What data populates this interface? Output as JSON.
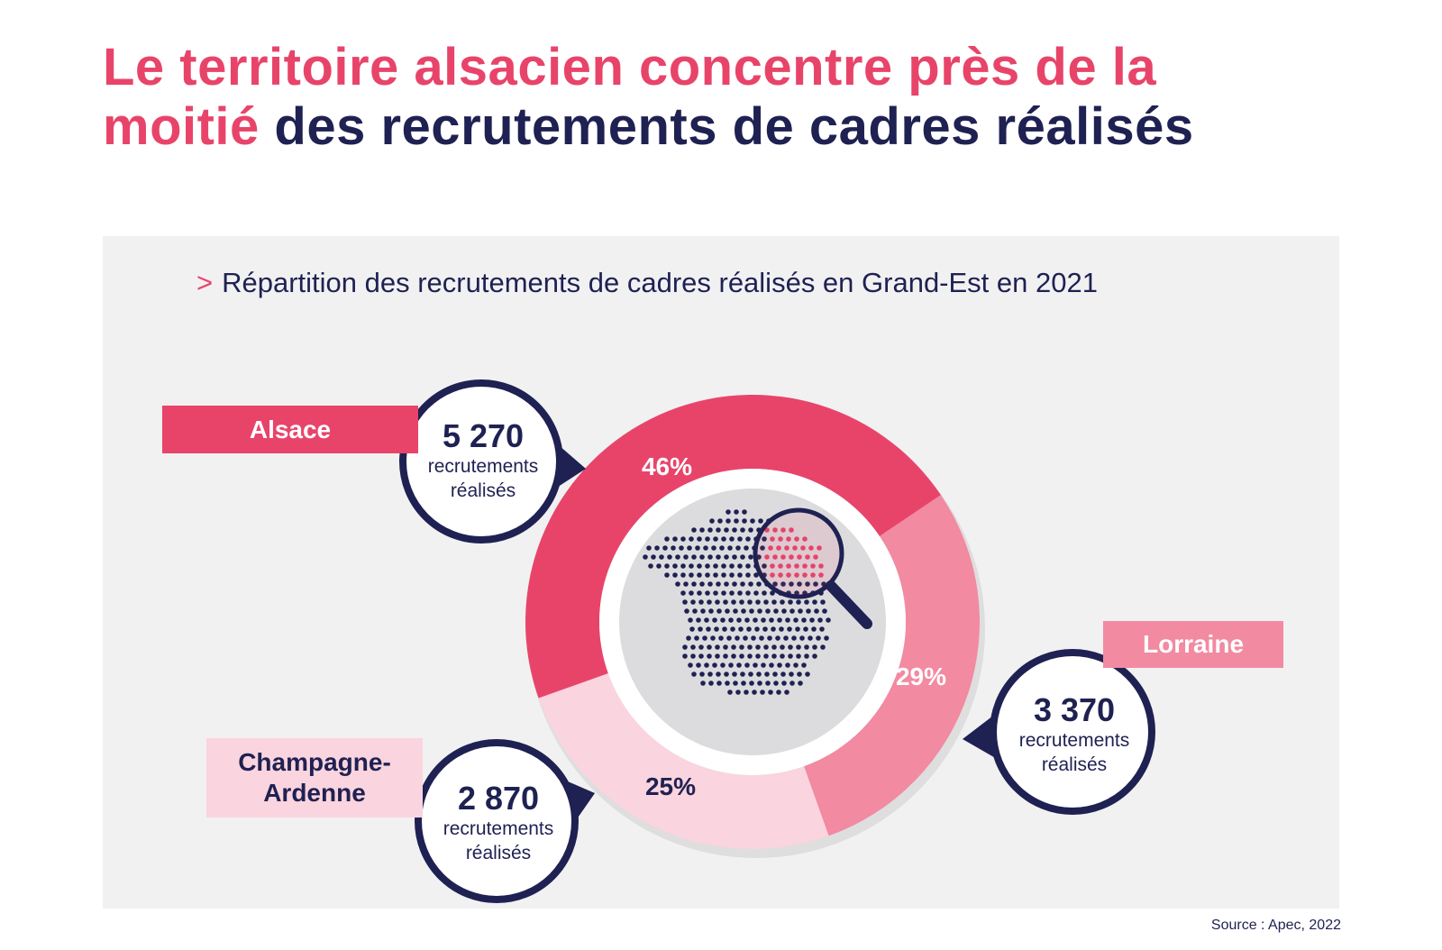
{
  "title": {
    "accent_part1": "Le territoire alsacien concentre près de la",
    "accent_part2": "moitié",
    "rest": " des recrutements de cadres réalisés"
  },
  "subtitle": {
    "chevron": ">",
    "text": "Répartition des recrutements de cadres réalisés en Grand-Est en 2021"
  },
  "source": "Source : Apec, 2022",
  "colors": {
    "alsace": "#e8446a",
    "lorraine": "#f28aa1",
    "champagne": "#fad4de",
    "navy": "#1f2152",
    "panel": "#f1f1f2"
  },
  "regions": [
    {
      "name": "Alsace",
      "count": "5 270",
      "unit_line1": "recrutements",
      "unit_line2": "réalisés",
      "percent_label": "46%"
    },
    {
      "name": "Lorraine",
      "count": "3 370",
      "unit_line1": "recrutements",
      "unit_line2": "réalisés",
      "percent_label": "29%"
    },
    {
      "name": "Champagne-\nArdenne",
      "count": "2 870",
      "unit_line1": "recrutements",
      "unit_line2": "réalisés",
      "percent_label": "25%"
    }
  ],
  "center_icon": "magnifier-over-dotted-france-map-icon",
  "chart_data": {
    "type": "pie",
    "title": "Répartition des recrutements de cadres réalisés en Grand-Est en 2021",
    "categories": [
      "Alsace",
      "Lorraine",
      "Champagne-Ardenne"
    ],
    "values": [
      46,
      29,
      25
    ],
    "counts": [
      5270,
      3370,
      2870
    ],
    "unit": "%"
  }
}
